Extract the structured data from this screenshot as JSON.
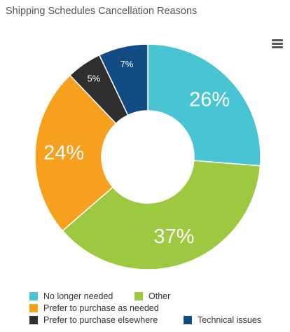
{
  "chart_data": {
    "type": "pie",
    "title": "Shipping Schedules Cancellation Reasons",
    "donut": true,
    "categories": [
      "No longer needed",
      "Other",
      "Prefer to purchase as needed",
      "Prefer to purchase elsewhere",
      "Technical issues"
    ],
    "values": [
      26,
      37,
      24,
      5,
      7
    ],
    "data_labels": [
      "26%",
      "37%",
      "24%",
      "5%",
      "7%"
    ],
    "colors": [
      "#48c4d2",
      "#9dc940",
      "#f7a01d",
      "#2f2f2f",
      "#124c84"
    ],
    "legend_position": "bottom-left"
  },
  "menu": {
    "icon": "hamburger-menu-icon"
  }
}
